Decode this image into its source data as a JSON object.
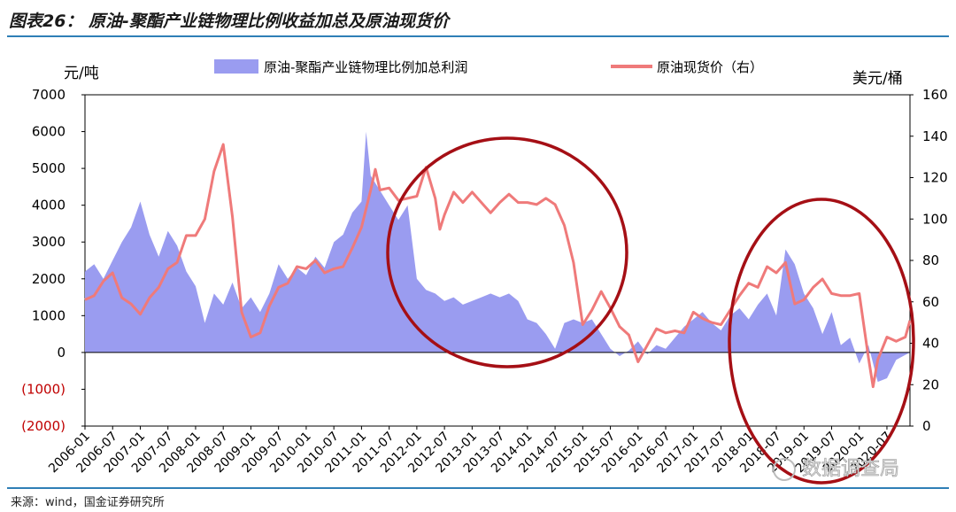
{
  "header": {
    "title": "图表26：  原油-聚酯产业链物理比例收益加总及原油现货价"
  },
  "footer": {
    "source": "来源：wind，国金证券研究所"
  },
  "watermark": {
    "text": "数据调查局"
  },
  "chart_data": {
    "type": "area+line",
    "left_unit": "元/吨",
    "right_unit": "美元/桶",
    "left_axis": {
      "min": -2000,
      "max": 7000,
      "ticks": [
        {
          "v": 7000,
          "label": "7000"
        },
        {
          "v": 6000,
          "label": "6000"
        },
        {
          "v": 5000,
          "label": "5000"
        },
        {
          "v": 4000,
          "label": "4000"
        },
        {
          "v": 3000,
          "label": "3000"
        },
        {
          "v": 2000,
          "label": "2000"
        },
        {
          "v": 1000,
          "label": "1000"
        },
        {
          "v": 0,
          "label": "0"
        },
        {
          "v": -1000,
          "label": "(1000)"
        },
        {
          "v": -2000,
          "label": "(2000)"
        }
      ]
    },
    "right_axis": {
      "min": 0,
      "max": 160,
      "ticks": [
        {
          "v": 160,
          "label": "160"
        },
        {
          "v": 140,
          "label": "140"
        },
        {
          "v": 120,
          "label": "120"
        },
        {
          "v": 100,
          "label": "100"
        },
        {
          "v": 80,
          "label": "80"
        },
        {
          "v": 60,
          "label": "60"
        },
        {
          "v": 40,
          "label": "40"
        },
        {
          "v": 20,
          "label": "20"
        },
        {
          "v": 0,
          "label": "0"
        }
      ]
    },
    "x_start": "2006-01",
    "x_end": "2020-12",
    "x_tick_labels": [
      "2006-01",
      "2006-07",
      "2007-01",
      "2007-07",
      "2008-01",
      "2008-07",
      "2009-01",
      "2009-07",
      "2010-01",
      "2010-07",
      "2011-01",
      "2011-07",
      "2012-01",
      "2012-07",
      "2013-01",
      "2013-07",
      "2014-01",
      "2014-07",
      "2015-01",
      "2015-07",
      "2016-01",
      "2016-07",
      "2017-01",
      "2017-07",
      "2018-01",
      "2018-07",
      "2019-01",
      "2019-07",
      "2020-01",
      "2020-07"
    ],
    "series": [
      {
        "name": "原油-聚酯产业链物理比例加总利润",
        "axis": "left",
        "color": "#9a9cf0",
        "style": "area",
        "points": [
          [
            "2006-01",
            2200
          ],
          [
            "2006-03",
            2400
          ],
          [
            "2006-05",
            2000
          ],
          [
            "2006-07",
            2500
          ],
          [
            "2006-09",
            3000
          ],
          [
            "2006-11",
            3400
          ],
          [
            "2007-01",
            4100
          ],
          [
            "2007-03",
            3200
          ],
          [
            "2007-05",
            2600
          ],
          [
            "2007-07",
            3300
          ],
          [
            "2007-09",
            2900
          ],
          [
            "2007-11",
            2200
          ],
          [
            "2008-01",
            1800
          ],
          [
            "2008-03",
            800
          ],
          [
            "2008-05",
            1600
          ],
          [
            "2008-07",
            1300
          ],
          [
            "2008-09",
            1900
          ],
          [
            "2008-11",
            1200
          ],
          [
            "2009-01",
            1500
          ],
          [
            "2009-03",
            1100
          ],
          [
            "2009-05",
            1600
          ],
          [
            "2009-07",
            2400
          ],
          [
            "2009-09",
            2000
          ],
          [
            "2009-11",
            2300
          ],
          [
            "2010-01",
            2100
          ],
          [
            "2010-03",
            2600
          ],
          [
            "2010-05",
            2300
          ],
          [
            "2010-07",
            3000
          ],
          [
            "2010-09",
            3200
          ],
          [
            "2010-11",
            3800
          ],
          [
            "2011-01",
            4100
          ],
          [
            "2011-02",
            6000
          ],
          [
            "2011-03",
            4800
          ],
          [
            "2011-05",
            4400
          ],
          [
            "2011-07",
            4000
          ],
          [
            "2011-09",
            3600
          ],
          [
            "2011-11",
            4000
          ],
          [
            "2012-01",
            2000
          ],
          [
            "2012-03",
            1700
          ],
          [
            "2012-05",
            1600
          ],
          [
            "2012-07",
            1400
          ],
          [
            "2012-09",
            1500
          ],
          [
            "2012-11",
            1300
          ],
          [
            "2013-01",
            1400
          ],
          [
            "2013-03",
            1500
          ],
          [
            "2013-05",
            1600
          ],
          [
            "2013-07",
            1500
          ],
          [
            "2013-09",
            1600
          ],
          [
            "2013-11",
            1400
          ],
          [
            "2014-01",
            900
          ],
          [
            "2014-03",
            800
          ],
          [
            "2014-05",
            500
          ],
          [
            "2014-07",
            100
          ],
          [
            "2014-09",
            800
          ],
          [
            "2014-11",
            900
          ],
          [
            "2015-01",
            800
          ],
          [
            "2015-03",
            900
          ],
          [
            "2015-05",
            500
          ],
          [
            "2015-07",
            100
          ],
          [
            "2015-09",
            -100
          ],
          [
            "2015-11",
            50
          ],
          [
            "2016-01",
            300
          ],
          [
            "2016-03",
            -50
          ],
          [
            "2016-05",
            200
          ],
          [
            "2016-07",
            100
          ],
          [
            "2016-09",
            400
          ],
          [
            "2016-11",
            700
          ],
          [
            "2017-01",
            900
          ],
          [
            "2017-03",
            1100
          ],
          [
            "2017-05",
            800
          ],
          [
            "2017-07",
            600
          ],
          [
            "2017-09",
            1000
          ],
          [
            "2017-11",
            1200
          ],
          [
            "2018-01",
            900
          ],
          [
            "2018-03",
            1300
          ],
          [
            "2018-05",
            1600
          ],
          [
            "2018-07",
            1000
          ],
          [
            "2018-09",
            2800
          ],
          [
            "2018-11",
            2400
          ],
          [
            "2019-01",
            1600
          ],
          [
            "2019-03",
            1200
          ],
          [
            "2019-05",
            500
          ],
          [
            "2019-07",
            1100
          ],
          [
            "2019-09",
            200
          ],
          [
            "2019-11",
            400
          ],
          [
            "2020-01",
            -300
          ],
          [
            "2020-03",
            200
          ],
          [
            "2020-05",
            -800
          ],
          [
            "2020-07",
            -700
          ],
          [
            "2020-09",
            -200
          ],
          [
            "2020-12",
            0
          ]
        ]
      },
      {
        "name": "原油现货价（右）",
        "axis": "right",
        "color": "#ef7a7a",
        "style": "line",
        "points": [
          [
            "2006-01",
            61
          ],
          [
            "2006-03",
            63
          ],
          [
            "2006-05",
            70
          ],
          [
            "2006-07",
            74
          ],
          [
            "2006-09",
            62
          ],
          [
            "2006-11",
            59
          ],
          [
            "2007-01",
            54
          ],
          [
            "2007-03",
            62
          ],
          [
            "2007-05",
            67
          ],
          [
            "2007-07",
            76
          ],
          [
            "2007-09",
            79
          ],
          [
            "2007-11",
            92
          ],
          [
            "2008-01",
            92
          ],
          [
            "2008-03",
            100
          ],
          [
            "2008-05",
            123
          ],
          [
            "2008-07",
            136
          ],
          [
            "2008-09",
            101
          ],
          [
            "2008-11",
            55
          ],
          [
            "2009-01",
            43
          ],
          [
            "2009-03",
            45
          ],
          [
            "2009-05",
            58
          ],
          [
            "2009-07",
            67
          ],
          [
            "2009-09",
            69
          ],
          [
            "2009-11",
            77
          ],
          [
            "2010-01",
            76
          ],
          [
            "2010-03",
            80
          ],
          [
            "2010-05",
            74
          ],
          [
            "2010-07",
            76
          ],
          [
            "2010-09",
            77
          ],
          [
            "2010-11",
            86
          ],
          [
            "2011-01",
            96
          ],
          [
            "2011-03",
            114
          ],
          [
            "2011-04",
            124
          ],
          [
            "2011-05",
            114
          ],
          [
            "2011-07",
            115
          ],
          [
            "2011-09",
            109
          ],
          [
            "2011-11",
            110
          ],
          [
            "2012-01",
            111
          ],
          [
            "2012-03",
            125
          ],
          [
            "2012-05",
            110
          ],
          [
            "2012-06",
            95
          ],
          [
            "2012-07",
            102
          ],
          [
            "2012-09",
            113
          ],
          [
            "2012-11",
            108
          ],
          [
            "2013-01",
            113
          ],
          [
            "2013-03",
            108
          ],
          [
            "2013-05",
            103
          ],
          [
            "2013-07",
            108
          ],
          [
            "2013-09",
            112
          ],
          [
            "2013-11",
            108
          ],
          [
            "2014-01",
            108
          ],
          [
            "2014-03",
            107
          ],
          [
            "2014-05",
            110
          ],
          [
            "2014-07",
            107
          ],
          [
            "2014-09",
            97
          ],
          [
            "2014-11",
            79
          ],
          [
            "2015-01",
            49
          ],
          [
            "2015-03",
            56
          ],
          [
            "2015-05",
            65
          ],
          [
            "2015-07",
            57
          ],
          [
            "2015-09",
            48
          ],
          [
            "2015-11",
            44
          ],
          [
            "2016-01",
            31
          ],
          [
            "2016-03",
            39
          ],
          [
            "2016-05",
            47
          ],
          [
            "2016-07",
            45
          ],
          [
            "2016-09",
            46
          ],
          [
            "2016-11",
            45
          ],
          [
            "2017-01",
            55
          ],
          [
            "2017-03",
            52
          ],
          [
            "2017-05",
            50
          ],
          [
            "2017-07",
            49
          ],
          [
            "2017-09",
            56
          ],
          [
            "2017-11",
            63
          ],
          [
            "2018-01",
            69
          ],
          [
            "2018-03",
            67
          ],
          [
            "2018-05",
            77
          ],
          [
            "2018-07",
            74
          ],
          [
            "2018-09",
            79
          ],
          [
            "2018-11",
            59
          ],
          [
            "2019-01",
            61
          ],
          [
            "2019-03",
            67
          ],
          [
            "2019-05",
            71
          ],
          [
            "2019-07",
            64
          ],
          [
            "2019-09",
            63
          ],
          [
            "2019-11",
            63
          ],
          [
            "2020-01",
            64
          ],
          [
            "2020-03",
            33
          ],
          [
            "2020-04",
            19
          ],
          [
            "2020-05",
            32
          ],
          [
            "2020-07",
            43
          ],
          [
            "2020-09",
            41
          ],
          [
            "2020-11",
            43
          ],
          [
            "2020-12",
            51
          ]
        ]
      }
    ]
  }
}
